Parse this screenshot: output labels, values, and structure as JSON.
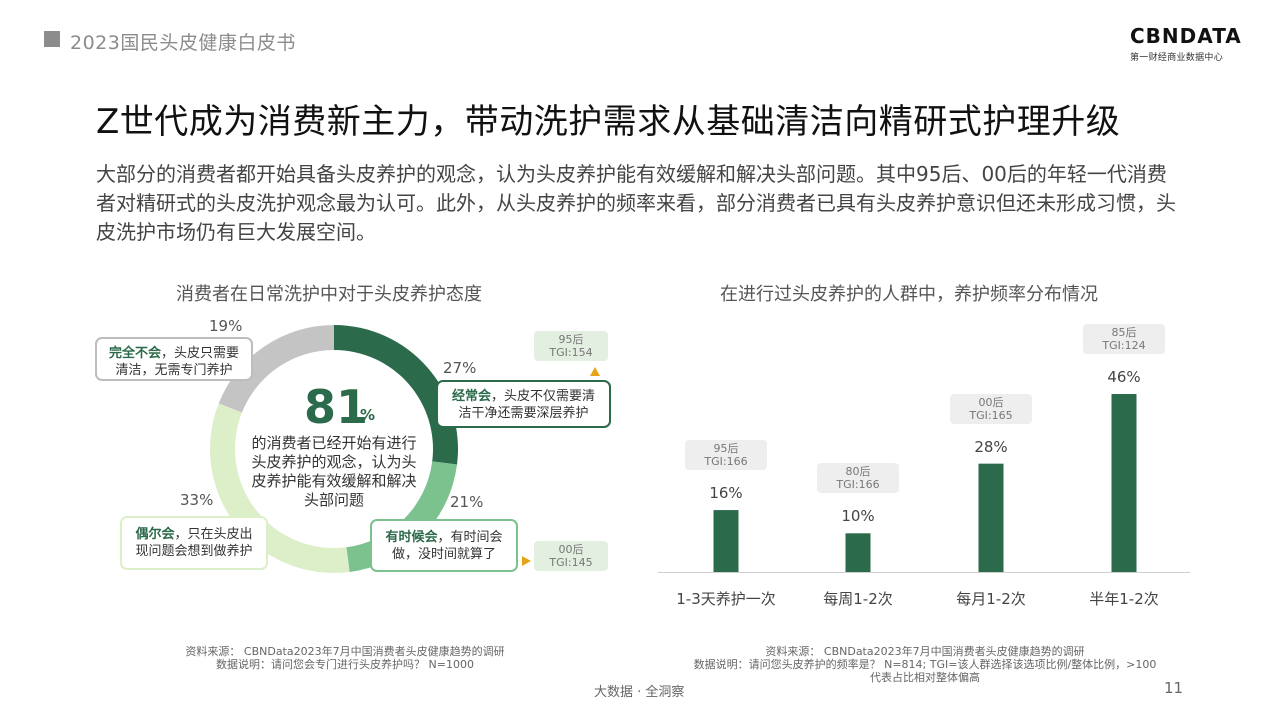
{
  "header": {
    "report_title": "2023国民头皮健康白皮书"
  },
  "logo": {
    "main": "CBNDATA",
    "sub": "第一财经商业数据中心"
  },
  "headline": "Z世代成为消费新主力，带动洗护需求从基础清洁向精研式护理升级",
  "summary": "大部分的消费者都开始具备头皮养护的观念，认为头皮养护能有效缓解和解决头部问题。其中95后、00后的年轻一代消费者对精研式的头皮洗护观念最为认可。此外，从头皮养护的频率来看，部分消费者已具有头皮养护意识但还未形成习惯，头皮洗护市场仍有巨大发展空间。",
  "colors": {
    "dark_green": "#2b6a4a",
    "mid_green": "#7cc28f",
    "light_green": "#dcefc8",
    "gray": "#c4c4c4"
  },
  "donut": {
    "center_number": "81",
    "center_unit": "%",
    "center_text": "的消费者已经开始有进行头皮养护的观念，认为头皮养护能有效缓解和解决头部问题",
    "labels": {
      "never": {
        "pct": "19%",
        "keyword": "完全不会",
        "rest": "，头皮只需要清洁，无需专门养护"
      },
      "often": {
        "pct": "27%",
        "keyword": "经常会",
        "rest": "，头皮不仅需要清洁干净还需要深层养护"
      },
      "sometimes": {
        "pct": "21%",
        "keyword": "有时候会",
        "rest": "，有时间会做，没时间就算了"
      },
      "occasionally": {
        "pct": "33%",
        "keyword": "偶尔会",
        "rest": "，只在头皮出现问题会想到做养护"
      }
    },
    "tgi_often": {
      "gen": "95后",
      "tgi": "TGI:154"
    },
    "tgi_sometimes": {
      "gen": "00后",
      "tgi": "TGI:145"
    },
    "source_line1": "资料来源： CBNData2023年7月中国消费者头皮健康趋势的调研",
    "source_line2": "数据说明：请问您会专门进行头皮养护吗？ N=1000"
  },
  "chart_data": [
    {
      "type": "pie",
      "title": "消费者在日常洗护中对于头皮养护态度",
      "categories": [
        "经常会",
        "有时候会",
        "偶尔会",
        "完全不会"
      ],
      "values": [
        27,
        21,
        33,
        19
      ],
      "unit": "%",
      "colors": [
        "#2b6a4a",
        "#7cc28f",
        "#dcefc8",
        "#c4c4c4"
      ]
    },
    {
      "type": "bar",
      "title": "在进行过头皮养护的人群中，养护频率分布情况",
      "categories": [
        "1-3天养护一次",
        "每周1-2次",
        "每月1-2次",
        "半年1-2次"
      ],
      "values": [
        16,
        10,
        28,
        46
      ],
      "value_labels": [
        "16%",
        "10%",
        "28%",
        "46%"
      ],
      "tgi": [
        {
          "gen": "95后",
          "tgi": "TGI:166"
        },
        {
          "gen": "80后",
          "tgi": "TGI:166"
        },
        {
          "gen": "00后",
          "tgi": "TGI:165"
        },
        {
          "gen": "85后",
          "tgi": "TGI:124"
        }
      ],
      "ylim": [
        0,
        50
      ],
      "color": "#2b6a4a",
      "source_line1": "资料来源： CBNData2023年7月中国消费者头皮健康趋势的调研",
      "source_line2": "数据说明：请问您头皮养护的频率是？ N=814; TGI=该人群选择该选项比例/整体比例，>100",
      "source_line3": "代表占比相对整体偏高"
    }
  ],
  "footer": {
    "center": "大数据 · 全洞察",
    "page": "11"
  }
}
